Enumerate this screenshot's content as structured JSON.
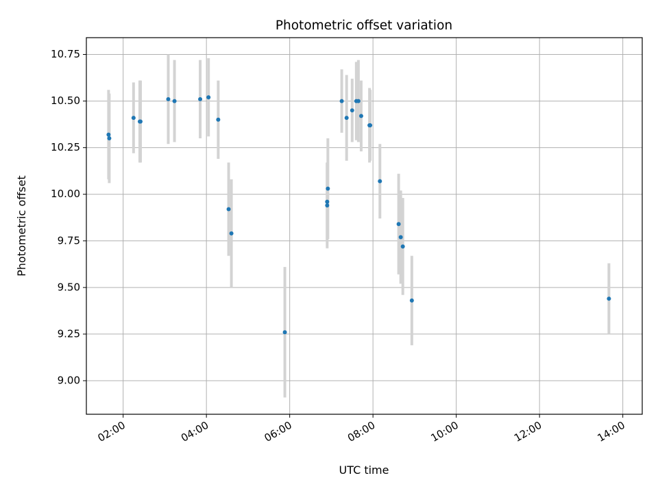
{
  "chart_data": {
    "type": "scatter",
    "title": "Photometric offset variation",
    "xlabel": "UTC time",
    "ylabel": "Photometric offset",
    "x_ticks": [
      "02:00",
      "04:00",
      "06:00",
      "08:00",
      "10:00",
      "12:00",
      "14:00"
    ],
    "y_ticks": [
      "9.00",
      "9.25",
      "9.50",
      "9.75",
      "10.00",
      "10.25",
      "10.50",
      "10.75"
    ],
    "xlim": [
      "01:07",
      "14:28"
    ],
    "ylim": [
      8.82,
      10.84
    ],
    "grid": true,
    "colors": {
      "point": "#1f77b4",
      "errorbar": "#d3d3d3",
      "grid": "#b0b0b0"
    },
    "points": [
      {
        "time": "01:39",
        "y": 10.32,
        "err": 0.24
      },
      {
        "time": "01:40",
        "y": 10.3,
        "err": 0.24
      },
      {
        "time": "02:15",
        "y": 10.41,
        "err": 0.19
      },
      {
        "time": "02:24",
        "y": 10.39,
        "err": 0.22
      },
      {
        "time": "02:25",
        "y": 10.39,
        "err": 0.22
      },
      {
        "time": "03:05",
        "y": 10.51,
        "err": 0.24
      },
      {
        "time": "03:14",
        "y": 10.5,
        "err": 0.22
      },
      {
        "time": "03:51",
        "y": 10.51,
        "err": 0.21
      },
      {
        "time": "04:03",
        "y": 10.52,
        "err": 0.21
      },
      {
        "time": "04:17",
        "y": 10.4,
        "err": 0.21
      },
      {
        "time": "04:32",
        "y": 9.92,
        "err": 0.25
      },
      {
        "time": "04:36",
        "y": 9.79,
        "err": 0.29
      },
      {
        "time": "05:53",
        "y": 9.26,
        "err": 0.35
      },
      {
        "time": "06:54",
        "y": 9.96,
        "err": 0.21
      },
      {
        "time": "06:54",
        "y": 9.94,
        "err": 0.23
      },
      {
        "time": "06:55",
        "y": 10.03,
        "err": 0.27
      },
      {
        "time": "07:15",
        "y": 10.5,
        "err": 0.17
      },
      {
        "time": "07:22",
        "y": 10.41,
        "err": 0.23
      },
      {
        "time": "07:30",
        "y": 10.45,
        "err": 0.17
      },
      {
        "time": "07:36",
        "y": 10.5,
        "err": 0.21
      },
      {
        "time": "07:39",
        "y": 10.5,
        "err": 0.22
      },
      {
        "time": "07:43",
        "y": 10.42,
        "err": 0.19
      },
      {
        "time": "07:55",
        "y": 10.37,
        "err": 0.2
      },
      {
        "time": "07:56",
        "y": 10.37,
        "err": 0.19
      },
      {
        "time": "08:10",
        "y": 10.07,
        "err": 0.2
      },
      {
        "time": "08:37",
        "y": 9.84,
        "err": 0.27
      },
      {
        "time": "08:40",
        "y": 9.77,
        "err": 0.25
      },
      {
        "time": "08:43",
        "y": 9.72,
        "err": 0.26
      },
      {
        "time": "08:56",
        "y": 9.43,
        "err": 0.24
      },
      {
        "time": "13:40",
        "y": 9.44,
        "err": 0.19
      }
    ]
  }
}
